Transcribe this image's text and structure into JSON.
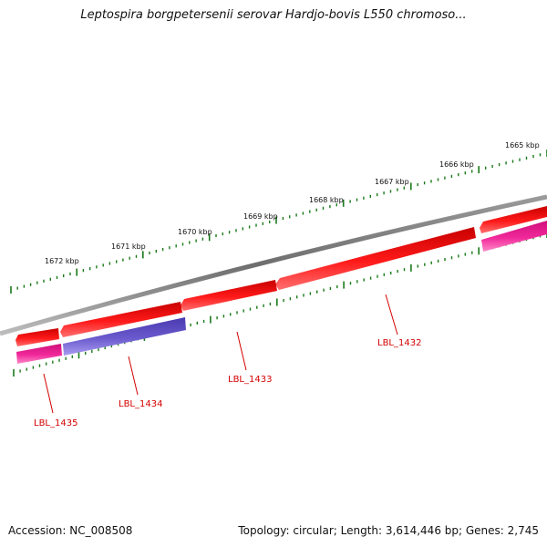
{
  "title": "Leptospira borgpetersenii serovar Hardjo-bovis L550 chromoso...",
  "footer": {
    "accession": "Accession: NC_008508",
    "topology": "Topology: circular; Length: 3,614,446 bp; Genes: 2,745"
  },
  "scale": {
    "ticks": [
      {
        "label": "1665 kbp"
      },
      {
        "label": "1666 kbp"
      },
      {
        "label": "1667 kbp"
      },
      {
        "label": "1668 kbp"
      },
      {
        "label": "1669 kbp"
      },
      {
        "label": "1670 kbp"
      },
      {
        "label": "1671 kbp"
      },
      {
        "label": "1672 kbp"
      }
    ]
  },
  "genes": [
    {
      "label": "LBL_1432",
      "color": "#ee1111"
    },
    {
      "label": "LBL_1433",
      "color": "#ee1111"
    },
    {
      "label": "LBL_1434",
      "color": "#6a5acd"
    },
    {
      "label": "LBL_1435",
      "color": "#e0208f"
    }
  ],
  "colors": {
    "backbone": "#808080",
    "cds_forward": "#ee1111",
    "cds_reverse_pink": "#e0208f",
    "cds_reverse_purple": "#6a5acd",
    "tick": "#1a7a1a",
    "gene_label": "#d40000"
  }
}
